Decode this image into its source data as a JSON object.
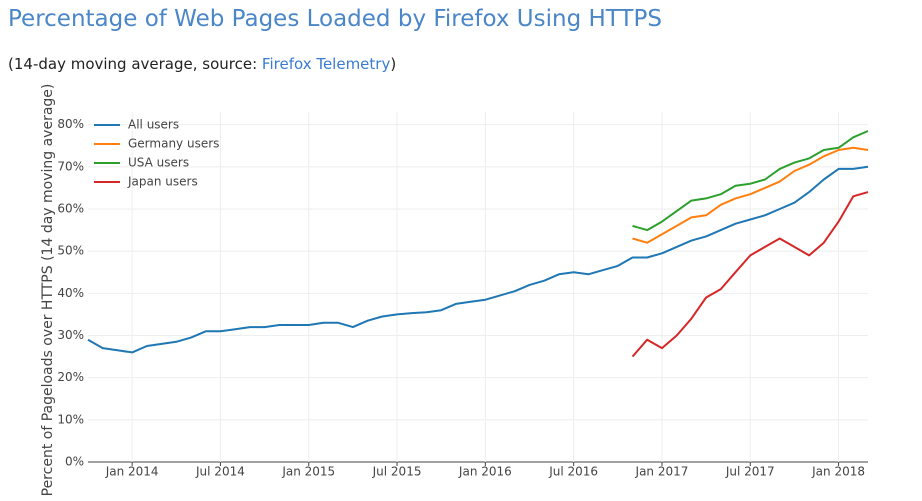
{
  "header": {
    "title": "Percentage of Web Pages Loaded by Firefox Using HTTPS",
    "subtitle_before": "(14-day moving average, source: ",
    "subtitle_link": "Firefox Telemetry",
    "subtitle_after": ")"
  },
  "chart_data": {
    "type": "line",
    "y_label": "Percent of Pageloads over HTTPS (14 day moving average)",
    "x": [
      "2013-10",
      "2013-11",
      "2013-12",
      "2014-01",
      "2014-02",
      "2014-03",
      "2014-04",
      "2014-05",
      "2014-06",
      "2014-07",
      "2014-08",
      "2014-09",
      "2014-10",
      "2014-11",
      "2014-12",
      "2015-01",
      "2015-02",
      "2015-03",
      "2015-04",
      "2015-05",
      "2015-06",
      "2015-07",
      "2015-08",
      "2015-09",
      "2015-10",
      "2015-11",
      "2015-12",
      "2016-01",
      "2016-02",
      "2016-03",
      "2016-04",
      "2016-05",
      "2016-06",
      "2016-07",
      "2016-08",
      "2016-09",
      "2016-10",
      "2016-11",
      "2016-12",
      "2017-01",
      "2017-02",
      "2017-03",
      "2017-04",
      "2017-05",
      "2017-06",
      "2017-07",
      "2017-08",
      "2017-09",
      "2017-10",
      "2017-11",
      "2017-12",
      "2018-01",
      "2018-02",
      "2018-03"
    ],
    "series": [
      {
        "name": "All users",
        "color": "#1f77b4",
        "values": [
          29,
          27,
          26.5,
          26,
          27.5,
          28,
          28.5,
          29.5,
          31,
          31,
          31.5,
          32,
          32,
          32.5,
          32.5,
          32.5,
          33,
          33,
          32,
          33.5,
          34.5,
          35,
          35.3,
          35.5,
          36,
          37.5,
          38,
          38.5,
          39.5,
          40.5,
          42,
          43,
          44.5,
          45,
          44.5,
          45.5,
          46.5,
          48.5,
          48.5,
          49.5,
          51,
          52.5,
          53.5,
          55,
          56.5,
          57.5,
          58.5,
          60,
          61.5,
          64,
          67,
          69.5,
          69.5,
          70
        ]
      },
      {
        "name": "Germany users",
        "color": "#ff7f0e",
        "values": [
          null,
          null,
          null,
          null,
          null,
          null,
          null,
          null,
          null,
          null,
          null,
          null,
          null,
          null,
          null,
          null,
          null,
          null,
          null,
          null,
          null,
          null,
          null,
          null,
          null,
          null,
          null,
          null,
          null,
          null,
          null,
          null,
          null,
          null,
          null,
          null,
          null,
          53,
          52,
          54,
          56,
          58,
          58.5,
          61,
          62.5,
          63.5,
          65,
          66.5,
          69,
          70.5,
          72.5,
          74,
          74.5,
          74
        ]
      },
      {
        "name": "USA users",
        "color": "#2ca02c",
        "values": [
          null,
          null,
          null,
          null,
          null,
          null,
          null,
          null,
          null,
          null,
          null,
          null,
          null,
          null,
          null,
          null,
          null,
          null,
          null,
          null,
          null,
          null,
          null,
          null,
          null,
          null,
          null,
          null,
          null,
          null,
          null,
          null,
          null,
          null,
          null,
          null,
          null,
          56,
          55,
          57,
          59.5,
          62,
          62.5,
          63.5,
          65.5,
          66,
          67,
          69.5,
          71,
          72,
          74,
          74.5,
          77,
          78.5
        ]
      },
      {
        "name": "Japan users",
        "color": "#d62728",
        "values": [
          null,
          null,
          null,
          null,
          null,
          null,
          null,
          null,
          null,
          null,
          null,
          null,
          null,
          null,
          null,
          null,
          null,
          null,
          null,
          null,
          null,
          null,
          null,
          null,
          null,
          null,
          null,
          null,
          null,
          null,
          null,
          null,
          null,
          null,
          null,
          null,
          null,
          25,
          29,
          27,
          30,
          34,
          39,
          41,
          45,
          49,
          51,
          53,
          51,
          49,
          52,
          57,
          63,
          64
        ]
      }
    ],
    "xlim": [
      "2013-10",
      "2018-03"
    ],
    "xticks": [
      {
        "value": "2014-01",
        "label": "Jan 2014"
      },
      {
        "value": "2014-07",
        "label": "Jul 2014"
      },
      {
        "value": "2015-01",
        "label": "Jan 2015"
      },
      {
        "value": "2015-07",
        "label": "Jul 2015"
      },
      {
        "value": "2016-01",
        "label": "Jan 2016"
      },
      {
        "value": "2016-07",
        "label": "Jul 2016"
      },
      {
        "value": "2017-01",
        "label": "Jan 2017"
      },
      {
        "value": "2017-07",
        "label": "Jul 2017"
      },
      {
        "value": "2018-01",
        "label": "Jan 2018"
      }
    ],
    "ylim": [
      0,
      83
    ],
    "yticks": [
      {
        "value": 0,
        "label": "0%"
      },
      {
        "value": 10,
        "label": "10%"
      },
      {
        "value": 20,
        "label": "20%"
      },
      {
        "value": 30,
        "label": "30%"
      },
      {
        "value": 40,
        "label": "40%"
      },
      {
        "value": 50,
        "label": "50%"
      },
      {
        "value": 60,
        "label": "60%"
      },
      {
        "value": 70,
        "label": "70%"
      },
      {
        "value": 80,
        "label": "80%"
      }
    ],
    "grid": true,
    "legend": "top-left"
  }
}
